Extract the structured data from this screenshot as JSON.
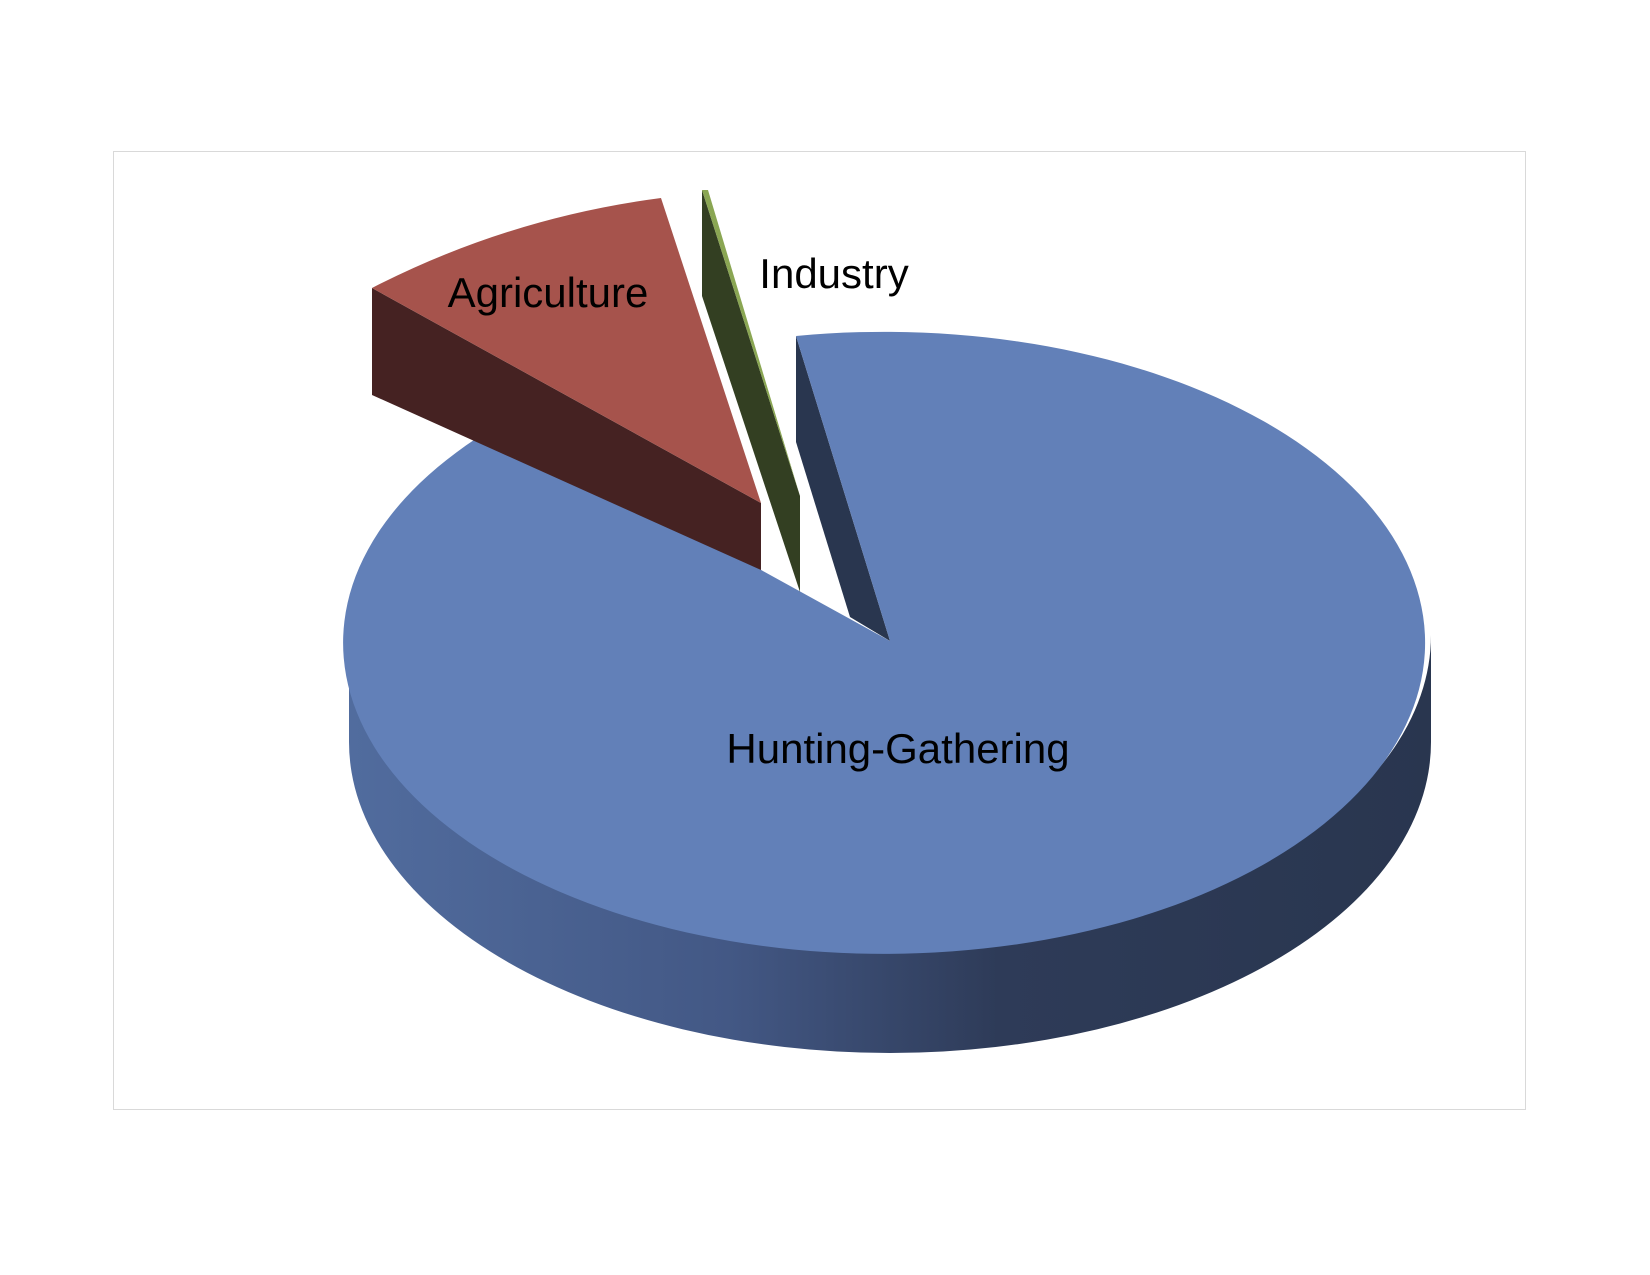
{
  "chart_data": {
    "type": "pie",
    "style": "3d-exploded",
    "slices": [
      {
        "label": "Hunting-Gathering",
        "value": 86.5,
        "color": "#6280b8",
        "side_dark": "#29364f",
        "side_light": "#516c9e"
      },
      {
        "label": "Agriculture",
        "value": 12.9,
        "color": "#a6534c",
        "side_dark": "#452222",
        "side_light": "#452222"
      },
      {
        "label": "Industry",
        "value": 0.6,
        "color": "#8aa653",
        "side_dark": "#333f22",
        "side_light": "#333f22"
      }
    ],
    "legend": "none",
    "grid": false
  }
}
